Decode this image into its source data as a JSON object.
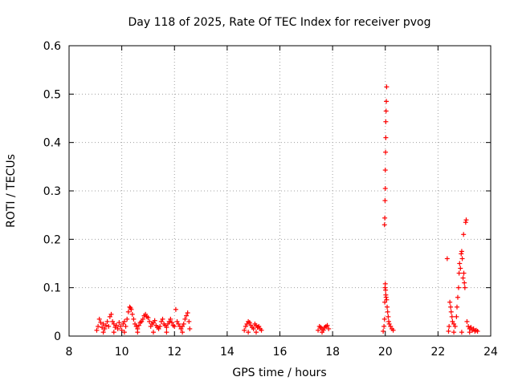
{
  "chart_data": {
    "type": "scatter",
    "title": "Day 118 of 2025, Rate Of TEC Index for receiver pvog",
    "xlabel": "GPS time / hours",
    "ylabel": "ROTI / TECUs",
    "xlim": [
      8,
      24
    ],
    "ylim": [
      0,
      0.6
    ],
    "xticks": [
      "8",
      "10",
      "12",
      "14",
      "16",
      "18",
      "20",
      "22",
      "24"
    ],
    "yticks": [
      "0",
      "0.1",
      "0.2",
      "0.3",
      "0.4",
      "0.5",
      "0.6"
    ],
    "grid": true,
    "legend": "none",
    "marker": "+",
    "series_color": "#ff0000",
    "points": [
      [
        9.05,
        0.012
      ],
      [
        9.1,
        0.02
      ],
      [
        9.15,
        0.035
      ],
      [
        9.2,
        0.028
      ],
      [
        9.25,
        0.018
      ],
      [
        9.3,
        0.025
      ],
      [
        9.35,
        0.015
      ],
      [
        9.4,
        0.022
      ],
      [
        9.45,
        0.03
      ],
      [
        9.5,
        0.02
      ],
      [
        9.55,
        0.04
      ],
      [
        9.6,
        0.045
      ],
      [
        9.65,
        0.03
      ],
      [
        9.7,
        0.025
      ],
      [
        9.75,
        0.018
      ],
      [
        9.8,
        0.022
      ],
      [
        9.85,
        0.015
      ],
      [
        9.9,
        0.028
      ],
      [
        9.95,
        0.02
      ],
      [
        10.0,
        0.012
      ],
      [
        10.05,
        0.025
      ],
      [
        10.1,
        0.03
      ],
      [
        10.15,
        0.02
      ],
      [
        10.2,
        0.035
      ],
      [
        10.25,
        0.05
      ],
      [
        10.3,
        0.06
      ],
      [
        10.33,
        0.058
      ],
      [
        10.36,
        0.055
      ],
      [
        10.4,
        0.045
      ],
      [
        10.45,
        0.035
      ],
      [
        10.5,
        0.025
      ],
      [
        10.55,
        0.02
      ],
      [
        10.6,
        0.015
      ],
      [
        10.65,
        0.022
      ],
      [
        10.7,
        0.028
      ],
      [
        10.75,
        0.03
      ],
      [
        10.8,
        0.035
      ],
      [
        10.85,
        0.042
      ],
      [
        10.9,
        0.045
      ],
      [
        10.95,
        0.04
      ],
      [
        11.0,
        0.038
      ],
      [
        11.05,
        0.03
      ],
      [
        11.1,
        0.02
      ],
      [
        11.15,
        0.025
      ],
      [
        11.2,
        0.028
      ],
      [
        11.25,
        0.032
      ],
      [
        11.3,
        0.022
      ],
      [
        11.35,
        0.018
      ],
      [
        11.4,
        0.015
      ],
      [
        11.45,
        0.02
      ],
      [
        11.5,
        0.03
      ],
      [
        11.55,
        0.035
      ],
      [
        11.6,
        0.025
      ],
      [
        11.65,
        0.022
      ],
      [
        11.7,
        0.018
      ],
      [
        11.75,
        0.025
      ],
      [
        11.8,
        0.03
      ],
      [
        11.85,
        0.035
      ],
      [
        11.9,
        0.028
      ],
      [
        11.95,
        0.022
      ],
      [
        12.0,
        0.02
      ],
      [
        12.05,
        0.055
      ],
      [
        12.1,
        0.03
      ],
      [
        12.15,
        0.025
      ],
      [
        12.2,
        0.02
      ],
      [
        12.25,
        0.015
      ],
      [
        12.3,
        0.02
      ],
      [
        12.35,
        0.025
      ],
      [
        12.4,
        0.035
      ],
      [
        12.45,
        0.042
      ],
      [
        12.5,
        0.048
      ],
      [
        12.55,
        0.03
      ],
      [
        12.58,
        0.015
      ],
      [
        9.3,
        0.008
      ],
      [
        9.7,
        0.008
      ],
      [
        10.1,
        0.008
      ],
      [
        10.6,
        0.008
      ],
      [
        11.2,
        0.008
      ],
      [
        11.7,
        0.008
      ],
      [
        12.3,
        0.008
      ],
      [
        14.65,
        0.012
      ],
      [
        14.7,
        0.02
      ],
      [
        14.75,
        0.025
      ],
      [
        14.8,
        0.03
      ],
      [
        14.85,
        0.028
      ],
      [
        14.9,
        0.022
      ],
      [
        14.95,
        0.018
      ],
      [
        15.0,
        0.015
      ],
      [
        15.05,
        0.025
      ],
      [
        15.1,
        0.022
      ],
      [
        15.15,
        0.018
      ],
      [
        15.2,
        0.02
      ],
      [
        15.25,
        0.015
      ],
      [
        15.3,
        0.012
      ],
      [
        14.8,
        0.008
      ],
      [
        15.1,
        0.008
      ],
      [
        17.45,
        0.012
      ],
      [
        17.5,
        0.02
      ],
      [
        17.55,
        0.018
      ],
      [
        17.6,
        0.015
      ],
      [
        17.65,
        0.012
      ],
      [
        17.7,
        0.018
      ],
      [
        17.75,
        0.02
      ],
      [
        17.8,
        0.022
      ],
      [
        17.85,
        0.015
      ],
      [
        17.6,
        0.008
      ],
      [
        19.92,
        0.01
      ],
      [
        19.95,
        0.02
      ],
      [
        19.97,
        0.035
      ],
      [
        19.98,
        0.07
      ],
      [
        19.99,
        0.1
      ],
      [
        20.0,
        0.108
      ],
      [
        20.01,
        0.095
      ],
      [
        20.02,
        0.085
      ],
      [
        20.03,
        0.08
      ],
      [
        20.05,
        0.075
      ],
      [
        20.07,
        0.06
      ],
      [
        20.09,
        0.05
      ],
      [
        20.11,
        0.04
      ],
      [
        20.13,
        0.03
      ],
      [
        20.15,
        0.025
      ],
      [
        20.2,
        0.02
      ],
      [
        20.25,
        0.015
      ],
      [
        20.3,
        0.012
      ],
      [
        19.97,
        0.23
      ],
      [
        19.98,
        0.244
      ],
      [
        19.99,
        0.28
      ],
      [
        20.0,
        0.305
      ],
      [
        20.0,
        0.343
      ],
      [
        20.01,
        0.38
      ],
      [
        20.02,
        0.41
      ],
      [
        20.02,
        0.443
      ],
      [
        20.03,
        0.465
      ],
      [
        20.04,
        0.485
      ],
      [
        20.05,
        0.515
      ],
      [
        22.35,
        0.16
      ],
      [
        22.4,
        0.01
      ],
      [
        22.42,
        0.02
      ],
      [
        22.45,
        0.07
      ],
      [
        22.48,
        0.06
      ],
      [
        22.5,
        0.05
      ],
      [
        22.53,
        0.04
      ],
      [
        22.55,
        0.03
      ],
      [
        22.6,
        0.025
      ],
      [
        22.65,
        0.02
      ],
      [
        22.7,
        0.04
      ],
      [
        22.72,
        0.06
      ],
      [
        22.75,
        0.08
      ],
      [
        22.78,
        0.1
      ],
      [
        22.8,
        0.13
      ],
      [
        22.82,
        0.15
      ],
      [
        22.85,
        0.14
      ],
      [
        22.88,
        0.17
      ],
      [
        22.9,
        0.175
      ],
      [
        22.92,
        0.16
      ],
      [
        22.95,
        0.12
      ],
      [
        22.98,
        0.13
      ],
      [
        23.0,
        0.11
      ],
      [
        23.02,
        0.1
      ],
      [
        22.97,
        0.21
      ],
      [
        23.05,
        0.235
      ],
      [
        23.07,
        0.24
      ],
      [
        23.1,
        0.03
      ],
      [
        23.15,
        0.02
      ],
      [
        23.2,
        0.015
      ],
      [
        23.25,
        0.018
      ],
      [
        23.3,
        0.012
      ],
      [
        23.35,
        0.015
      ],
      [
        23.4,
        0.01
      ],
      [
        23.45,
        0.012
      ],
      [
        23.5,
        0.01
      ],
      [
        22.6,
        0.008
      ],
      [
        22.9,
        0.008
      ],
      [
        23.2,
        0.008
      ]
    ]
  }
}
